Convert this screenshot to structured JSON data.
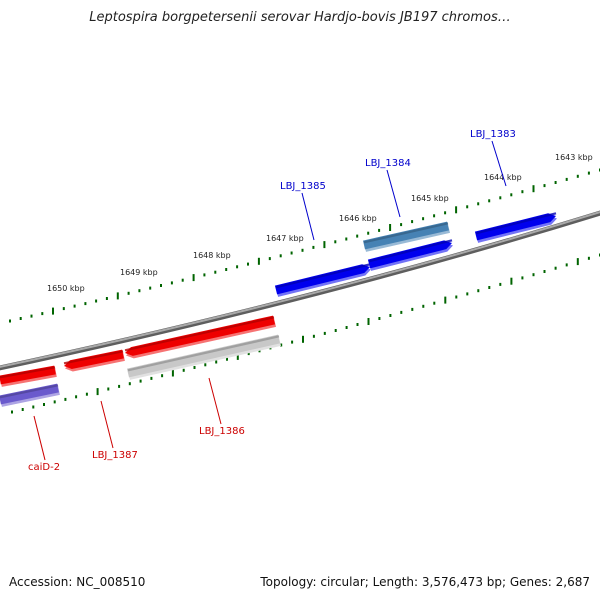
{
  "title": "Leptospira borgpetersenii serovar Hardjo-bovis JB197 chromos…",
  "footer": {
    "accession": "Accession: NC_008510",
    "summary": "Topology: circular; Length: 3,576,473 bp; Genes: 2,687"
  },
  "colors": {
    "forward_gene": "#0000ee",
    "forward_gene_selected": "#4682b4",
    "reverse_gene": "#ee0000",
    "pseudo_gene": "#c8c8c8",
    "other_gene": "#6a5acd",
    "backbone": "#808080",
    "tick": "#006400",
    "forward_label": "#0000cc",
    "reverse_label": "#cc0000"
  },
  "scale": {
    "unit": "kbp",
    "labels": [
      "1643 kbp",
      "1644 kbp",
      "1645 kbp",
      "1646 kbp",
      "1647 kbp",
      "1648 kbp",
      "1649 kbp",
      "1650 kbp"
    ]
  },
  "genes": [
    {
      "name": "LBJ_1383",
      "strand": "forward"
    },
    {
      "name": "LBJ_1384",
      "strand": "forward"
    },
    {
      "name": "LBJ_1385",
      "strand": "forward"
    },
    {
      "name": "LBJ_1386",
      "strand": "reverse"
    },
    {
      "name": "LBJ_1387",
      "strand": "reverse"
    },
    {
      "name": "caiD-2",
      "strand": "reverse"
    }
  ]
}
